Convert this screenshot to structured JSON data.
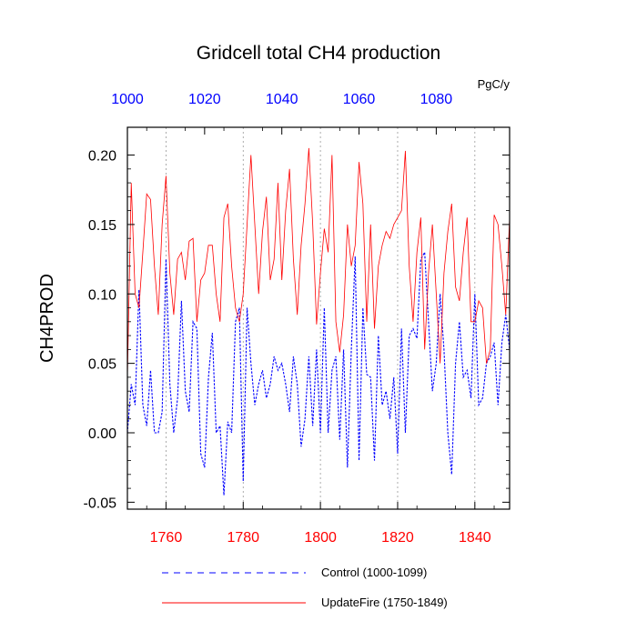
{
  "chart_data": {
    "type": "line",
    "title": "Gridcell total CH4 production",
    "units_label": "PgC/y",
    "ylabel": "CH4PROD",
    "ylim": [
      -0.055,
      0.22
    ],
    "yticks": [
      -0.05,
      0.0,
      0.05,
      0.1,
      0.15,
      0.2
    ],
    "ytick_labels": [
      "-0.05",
      "0.00",
      "0.05",
      "0.10",
      "0.15",
      "0.20"
    ],
    "bottom_axis": {
      "range": [
        1750,
        1849
      ],
      "ticks": [
        1760,
        1780,
        1800,
        1820,
        1840
      ],
      "tick_labels": [
        "1760",
        "1780",
        "1800",
        "1820",
        "1840"
      ],
      "color": "#ff0000"
    },
    "top_axis": {
      "range": [
        1000,
        1099
      ],
      "ticks": [
        1000,
        1020,
        1040,
        1060,
        1080
      ],
      "tick_labels": [
        "1000",
        "1020",
        "1040",
        "1060",
        "1080"
      ],
      "color": "#0000ff"
    },
    "vertical_gridlines": [
      1760,
      1780,
      1800,
      1820,
      1840
    ],
    "legend_position": "bottom",
    "series": [
      {
        "name": "Control (1000-1099)",
        "axis": "top",
        "color": "#0000ff",
        "dash": "dashed",
        "x_start": 1000,
        "values": [
          0.0,
          0.035,
          0.02,
          0.103,
          0.02,
          0.005,
          0.045,
          0.0,
          0.0,
          0.015,
          0.125,
          0.035,
          0.0,
          0.025,
          0.095,
          0.03,
          0.015,
          0.08,
          0.075,
          -0.015,
          -0.025,
          0.04,
          0.072,
          0.0,
          0.005,
          -0.045,
          0.008,
          0.0,
          0.08,
          0.09,
          -0.035,
          0.09,
          0.05,
          0.02,
          0.035,
          0.045,
          0.025,
          0.035,
          0.055,
          0.045,
          0.05,
          0.035,
          0.015,
          0.055,
          0.035,
          -0.01,
          0.01,
          0.055,
          0.005,
          0.06,
          0.0,
          0.09,
          0.0,
          0.045,
          0.055,
          -0.005,
          0.06,
          -0.025,
          0.06,
          0.127,
          -0.02,
          0.09,
          0.042,
          0.04,
          -0.02,
          0.07,
          0.02,
          0.03,
          0.01,
          0.04,
          -0.015,
          0.075,
          0.0,
          0.07,
          0.075,
          0.068,
          0.125,
          0.13,
          0.08,
          0.03,
          0.05,
          0.1,
          0.06,
          0.0,
          -0.03,
          0.05,
          0.08,
          0.04,
          0.045,
          0.025,
          0.1,
          0.02,
          0.025,
          0.05,
          0.055,
          0.065,
          0.02,
          0.065,
          0.085,
          0.06
        ]
      },
      {
        "name": "UpdateFire (1750-1849)",
        "axis": "bottom",
        "color": "#ff0000",
        "dash": "solid",
        "x_start": 1750,
        "values": [
          0.04,
          0.18,
          0.1,
          0.09,
          0.13,
          0.172,
          0.168,
          0.12,
          0.085,
          0.15,
          0.185,
          0.115,
          0.085,
          0.125,
          0.13,
          0.11,
          0.138,
          0.14,
          0.08,
          0.11,
          0.115,
          0.135,
          0.135,
          0.1,
          0.08,
          0.155,
          0.165,
          0.12,
          0.09,
          0.08,
          0.1,
          0.15,
          0.2,
          0.15,
          0.1,
          0.145,
          0.17,
          0.11,
          0.125,
          0.18,
          0.11,
          0.16,
          0.19,
          0.125,
          0.085,
          0.135,
          0.165,
          0.205,
          0.15,
          0.078,
          0.115,
          0.147,
          0.13,
          0.2,
          0.08,
          0.058,
          0.085,
          0.15,
          0.12,
          0.135,
          0.195,
          0.165,
          0.08,
          0.15,
          0.075,
          0.12,
          0.135,
          0.145,
          0.14,
          0.15,
          0.155,
          0.16,
          0.203,
          0.12,
          0.08,
          0.13,
          0.155,
          0.06,
          0.115,
          0.15,
          0.1,
          0.05,
          0.115,
          0.145,
          0.165,
          0.105,
          0.095,
          0.13,
          0.155,
          0.08,
          0.08,
          0.095,
          0.09,
          0.05,
          0.06,
          0.157,
          0.15,
          0.12,
          0.085,
          0.155
        ]
      }
    ]
  }
}
